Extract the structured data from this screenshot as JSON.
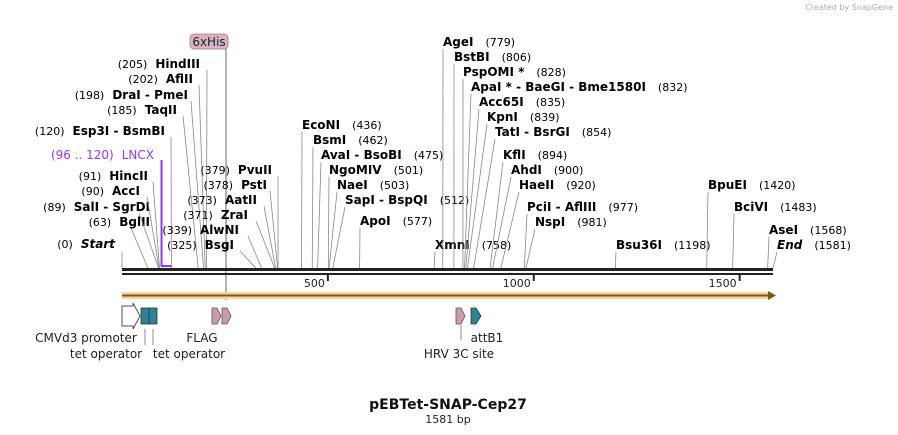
{
  "credit": "Created by SnapGene",
  "title": "pEBTet-SNAP-Cep27",
  "length": "1581 bp",
  "total_bp": 1581,
  "ruler": [
    "500",
    "1000",
    "1500"
  ],
  "his_tag": "6xHis",
  "lncx": {
    "pos": "(96 .. 120)",
    "name": "LNCX",
    "start": 96,
    "end": 120,
    "color": "#9933ff"
  },
  "sites": [
    {
      "pos": "(0)",
      "name": "Start",
      "bp": 0
    },
    {
      "pos": "(63)",
      "name": "BglII",
      "bp": 63
    },
    {
      "pos": "(89)",
      "name": "SalI  - SgrDI",
      "bp": 89
    },
    {
      "pos": "(90)",
      "name": "AccI",
      "bp": 90
    },
    {
      "pos": "(91)",
      "name": "HincII",
      "bp": 91
    },
    {
      "pos": "(120)",
      "name": "Esp3I  - BsmBI",
      "bp": 120
    },
    {
      "pos": "(185)",
      "name": "TaqII",
      "bp": 185
    },
    {
      "pos": "(198)",
      "name": "DraI  - PmeI",
      "bp": 198
    },
    {
      "pos": "(202)",
      "name": "AflII",
      "bp": 202
    },
    {
      "pos": "(205)",
      "name": "HindIII",
      "bp": 205
    },
    {
      "pos": "(379)",
      "name": "PvuII",
      "bp": 379
    },
    {
      "pos": "(378)",
      "name": "PstI",
      "bp": 378
    },
    {
      "pos": "(373)",
      "name": "AatII",
      "bp": 373
    },
    {
      "pos": "(371)",
      "name": "ZraI",
      "bp": 371
    },
    {
      "pos": "(339)",
      "name": "AlwNI",
      "bp": 339
    },
    {
      "pos": "(325)",
      "name": "BsgI",
      "bp": 325
    },
    {
      "pos": "(436)",
      "name": "EcoNI",
      "bp": 436
    },
    {
      "pos": "(462)",
      "name": "BsmI",
      "bp": 462
    },
    {
      "pos": "(475)",
      "name": "AvaI  - BsoBI",
      "bp": 475
    },
    {
      "pos": "(501)",
      "name": "NgoMIV",
      "bp": 501
    },
    {
      "pos": "(503)",
      "name": "NaeI",
      "bp": 503
    },
    {
      "pos": "(512)",
      "name": "SapI  - BspQI",
      "bp": 512
    },
    {
      "pos": "(577)",
      "name": "ApoI",
      "bp": 577
    },
    {
      "pos": "(758)",
      "name": "XmnI",
      "bp": 758
    },
    {
      "pos": "(779)",
      "name": "AgeI",
      "bp": 779
    },
    {
      "pos": "(806)",
      "name": "BstBI",
      "bp": 806
    },
    {
      "pos": "(828)",
      "name": "PspOMI *",
      "bp": 828
    },
    {
      "pos": "(832)",
      "name": "ApaI * - BaeGI  - Bme1580I",
      "bp": 832
    },
    {
      "pos": "(835)",
      "name": "Acc65I",
      "bp": 835
    },
    {
      "pos": "(839)",
      "name": "KpnI",
      "bp": 839
    },
    {
      "pos": "(854)",
      "name": "TatI  - BsrGI",
      "bp": 854
    },
    {
      "pos": "(894)",
      "name": "KflI",
      "bp": 894
    },
    {
      "pos": "(900)",
      "name": "AhdI",
      "bp": 900
    },
    {
      "pos": "(920)",
      "name": "HaeII",
      "bp": 920
    },
    {
      "pos": "(977)",
      "name": "PciI  - AflIII",
      "bp": 977
    },
    {
      "pos": "(981)",
      "name": "NspI",
      "bp": 981
    },
    {
      "pos": "(1198)",
      "name": "Bsu36I",
      "bp": 1198
    },
    {
      "pos": "(1420)",
      "name": "BpuEI",
      "bp": 1420
    },
    {
      "pos": "(1483)",
      "name": "BciVI",
      "bp": 1483
    },
    {
      "pos": "(1568)",
      "name": "AseI",
      "bp": 1568
    },
    {
      "pos": "(1581)",
      "name": "End",
      "bp": 1581
    }
  ],
  "features": [
    {
      "name": "CMVd3 promoter",
      "color": "#ffffff"
    },
    {
      "name": "tet operator",
      "color": "#2e8199"
    },
    {
      "name": "tet operator",
      "color": "#2e8199"
    },
    {
      "name": "FLAG",
      "color": "#cc99b2"
    },
    {
      "name": "HRV 3C site",
      "color": "#cc99b2"
    },
    {
      "name": "attB1",
      "color": "#2e8199"
    }
  ]
}
